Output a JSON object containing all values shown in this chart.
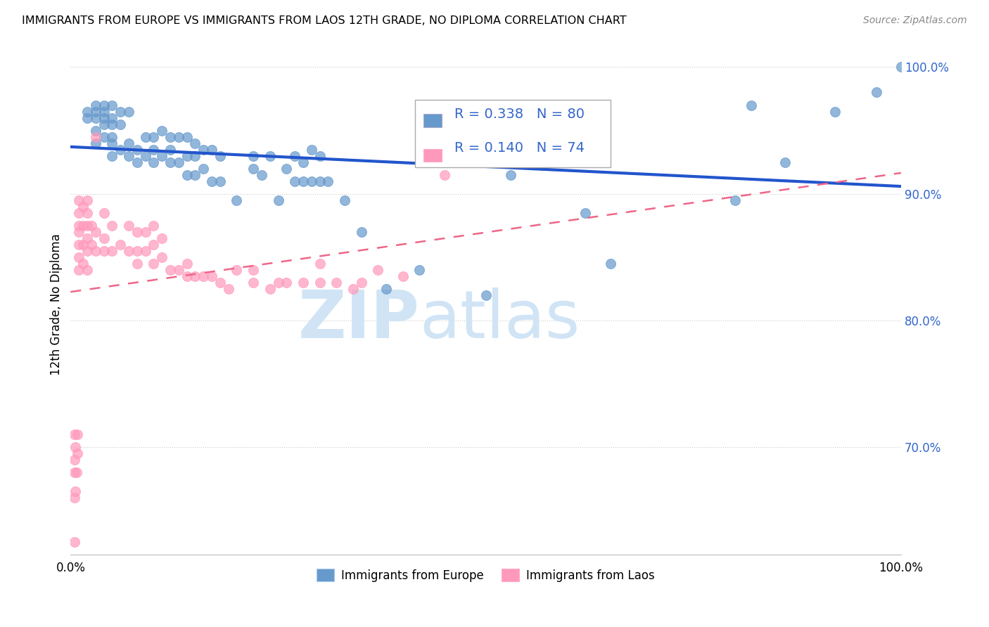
{
  "title": "IMMIGRANTS FROM EUROPE VS IMMIGRANTS FROM LAOS 12TH GRADE, NO DIPLOMA CORRELATION CHART",
  "source": "Source: ZipAtlas.com",
  "ylabel": "12th Grade, No Diploma",
  "xmin": 0.0,
  "xmax": 1.0,
  "ymin": 0.615,
  "ymax": 1.01,
  "yticks": [
    0.7,
    0.8,
    0.9,
    1.0
  ],
  "ytick_labels": [
    "70.0%",
    "80.0%",
    "90.0%",
    "100.0%"
  ],
  "xticks": [
    0.0,
    0.1,
    0.2,
    0.3,
    0.4,
    0.5,
    0.6,
    0.7,
    0.8,
    0.9,
    1.0
  ],
  "xtick_labels_show": [
    "0.0%",
    "",
    "",
    "",
    "",
    "",
    "",
    "",
    "",
    "",
    "100.0%"
  ],
  "legend_labels": [
    "Immigrants from Europe",
    "Immigrants from Laos"
  ],
  "R_europe": 0.338,
  "N_europe": 80,
  "R_laos": 0.14,
  "N_laos": 74,
  "blue_color": "#6699CC",
  "pink_color": "#FF99BB",
  "trend_blue": "#2255CC",
  "trend_pink": "#EE6688",
  "tick_color": "#3366CC",
  "watermark_color": "#D0E4F5",
  "blue_scatter_x": [
    0.02,
    0.02,
    0.03,
    0.03,
    0.03,
    0.03,
    0.03,
    0.04,
    0.04,
    0.04,
    0.04,
    0.04,
    0.05,
    0.05,
    0.05,
    0.05,
    0.05,
    0.05,
    0.06,
    0.06,
    0.06,
    0.07,
    0.07,
    0.07,
    0.08,
    0.08,
    0.09,
    0.09,
    0.1,
    0.1,
    0.1,
    0.11,
    0.11,
    0.12,
    0.12,
    0.12,
    0.13,
    0.13,
    0.14,
    0.14,
    0.14,
    0.15,
    0.15,
    0.15,
    0.16,
    0.16,
    0.17,
    0.17,
    0.18,
    0.18,
    0.2,
    0.22,
    0.22,
    0.23,
    0.24,
    0.25,
    0.26,
    0.27,
    0.27,
    0.28,
    0.28,
    0.29,
    0.29,
    0.3,
    0.3,
    0.31,
    0.33,
    0.35,
    0.38,
    0.42,
    0.5,
    0.53,
    0.62,
    0.65,
    0.8,
    0.82,
    0.86,
    0.92,
    0.97,
    1.0
  ],
  "blue_scatter_y": [
    0.96,
    0.965,
    0.94,
    0.95,
    0.96,
    0.965,
    0.97,
    0.945,
    0.955,
    0.96,
    0.965,
    0.97,
    0.93,
    0.94,
    0.945,
    0.955,
    0.96,
    0.97,
    0.935,
    0.955,
    0.965,
    0.93,
    0.94,
    0.965,
    0.925,
    0.935,
    0.93,
    0.945,
    0.925,
    0.935,
    0.945,
    0.93,
    0.95,
    0.925,
    0.935,
    0.945,
    0.925,
    0.945,
    0.915,
    0.93,
    0.945,
    0.915,
    0.93,
    0.94,
    0.92,
    0.935,
    0.91,
    0.935,
    0.91,
    0.93,
    0.895,
    0.93,
    0.92,
    0.915,
    0.93,
    0.895,
    0.92,
    0.91,
    0.93,
    0.91,
    0.925,
    0.91,
    0.935,
    0.91,
    0.93,
    0.91,
    0.895,
    0.87,
    0.825,
    0.84,
    0.82,
    0.915,
    0.885,
    0.845,
    0.895,
    0.97,
    0.925,
    0.965,
    0.98,
    1.0
  ],
  "pink_scatter_x": [
    0.005,
    0.005,
    0.005,
    0.005,
    0.005,
    0.006,
    0.006,
    0.007,
    0.008,
    0.008,
    0.01,
    0.01,
    0.01,
    0.01,
    0.01,
    0.01,
    0.01,
    0.015,
    0.015,
    0.015,
    0.015,
    0.02,
    0.02,
    0.02,
    0.02,
    0.02,
    0.02,
    0.025,
    0.025,
    0.03,
    0.03,
    0.03,
    0.04,
    0.04,
    0.04,
    0.05,
    0.05,
    0.06,
    0.07,
    0.07,
    0.08,
    0.08,
    0.08,
    0.09,
    0.09,
    0.1,
    0.1,
    0.1,
    0.11,
    0.11,
    0.12,
    0.13,
    0.14,
    0.14,
    0.15,
    0.16,
    0.17,
    0.18,
    0.19,
    0.2,
    0.22,
    0.22,
    0.24,
    0.25,
    0.26,
    0.28,
    0.3,
    0.3,
    0.32,
    0.34,
    0.35,
    0.37,
    0.4,
    0.45
  ],
  "pink_scatter_y": [
    0.625,
    0.66,
    0.68,
    0.69,
    0.71,
    0.665,
    0.7,
    0.68,
    0.695,
    0.71,
    0.84,
    0.85,
    0.86,
    0.87,
    0.875,
    0.885,
    0.895,
    0.845,
    0.86,
    0.875,
    0.89,
    0.84,
    0.855,
    0.865,
    0.875,
    0.885,
    0.895,
    0.86,
    0.875,
    0.855,
    0.87,
    0.945,
    0.855,
    0.865,
    0.885,
    0.855,
    0.875,
    0.86,
    0.855,
    0.875,
    0.845,
    0.855,
    0.87,
    0.855,
    0.87,
    0.845,
    0.86,
    0.875,
    0.85,
    0.865,
    0.84,
    0.84,
    0.835,
    0.845,
    0.835,
    0.835,
    0.835,
    0.83,
    0.825,
    0.84,
    0.83,
    0.84,
    0.825,
    0.83,
    0.83,
    0.83,
    0.83,
    0.845,
    0.83,
    0.825,
    0.83,
    0.84,
    0.835,
    0.915
  ]
}
